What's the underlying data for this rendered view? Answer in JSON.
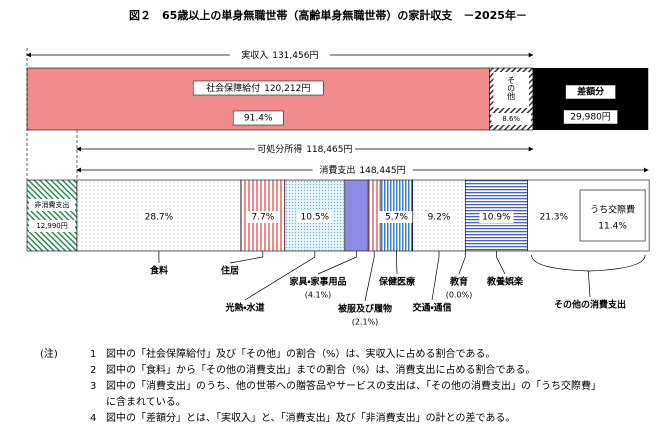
{
  "title": "図２　65歳以上の単身無職世帯（高齢単身無職世帯）の家計収支　－2025年－",
  "income": {
    "label": "実収入",
    "value": 131456,
    "value_label": "131,456円"
  },
  "income_segments": [
    {
      "name": "社会保障給付",
      "amount": 120212,
      "amount_label": "120,212円",
      "share": 91.4,
      "share_label": "91.4%",
      "color": "#f28b8b"
    },
    {
      "name": "その他",
      "share": 8.6,
      "share_label": "8.6%",
      "color": "#ffffff"
    }
  ],
  "deficit": {
    "name": "差額分",
    "value": 29980,
    "value_label": "29,980円",
    "color": "#000000"
  },
  "disposable_income": {
    "label": "可処分所得",
    "value": 118465,
    "value_label": "118,465円"
  },
  "consumption": {
    "label": "消費支出",
    "value": 148445,
    "value_label": "148,445円"
  },
  "non_consumption": {
    "name": "非消費支出",
    "value": 12990,
    "value_label": "12,990円",
    "color": "#2e8b57"
  },
  "expenditure_segments": [
    {
      "name": "食料",
      "share": 28.7,
      "share_label": "28.7%",
      "color": "#ffffff"
    },
    {
      "name": "住居",
      "share": 7.7,
      "share_label": "7.7%",
      "color": "#f4a6a6"
    },
    {
      "name": "光熱・水道",
      "share": 10.5,
      "share_label": "10.5%",
      "color": "#dff1f7"
    },
    {
      "name": "家具・家事用品",
      "share": 4.1,
      "share_label": "(4.1%)",
      "color": "#8c8ce6"
    },
    {
      "name": "被服及び履物",
      "share": 2.1,
      "share_label": "(2.1%)",
      "color": "#f4a6a6"
    },
    {
      "name": "保健医療",
      "share": 5.7,
      "share_label": "5.7%",
      "color": "#4a90d9"
    },
    {
      "name": "交通・通信",
      "share": 9.2,
      "share_label": "9.2%",
      "color": "#ffffff"
    },
    {
      "name": "教育",
      "share": 0.0,
      "share_label": "(0.0%)",
      "color": "#ffffff"
    },
    {
      "name": "教養娯楽",
      "share": 10.9,
      "share_label": "10.9%",
      "color": "#5b6fd6"
    },
    {
      "name": "その他の消費支出",
      "share": 21.3,
      "share_label": "21.3%",
      "color": "#ffffff"
    }
  ],
  "entertainment": {
    "name": "うち交際費",
    "share": 11.4,
    "share_label": "11.4%"
  },
  "notes": {
    "label": "(注)",
    "items": [
      {
        "number": "1",
        "text": "図中の「社会保障給付」及び「その他」の割合（%）は、実収入に占める割合である。"
      },
      {
        "number": "2",
        "text": "図中の「食料」から「その他の消費支出」までの割合（%）は、消費支出に占める割合である。"
      },
      {
        "number": "3",
        "text": "図中の「消費支出」のうち、他の世帯への贈答品やサービスの支出は、「その他の消費支出」の「うち交際費」に含まれている。"
      },
      {
        "number": "4",
        "text": "図中の「差額分」とは、「実収入」と、「消費支出」及び「非消費支出」の計との差である。"
      }
    ]
  }
}
